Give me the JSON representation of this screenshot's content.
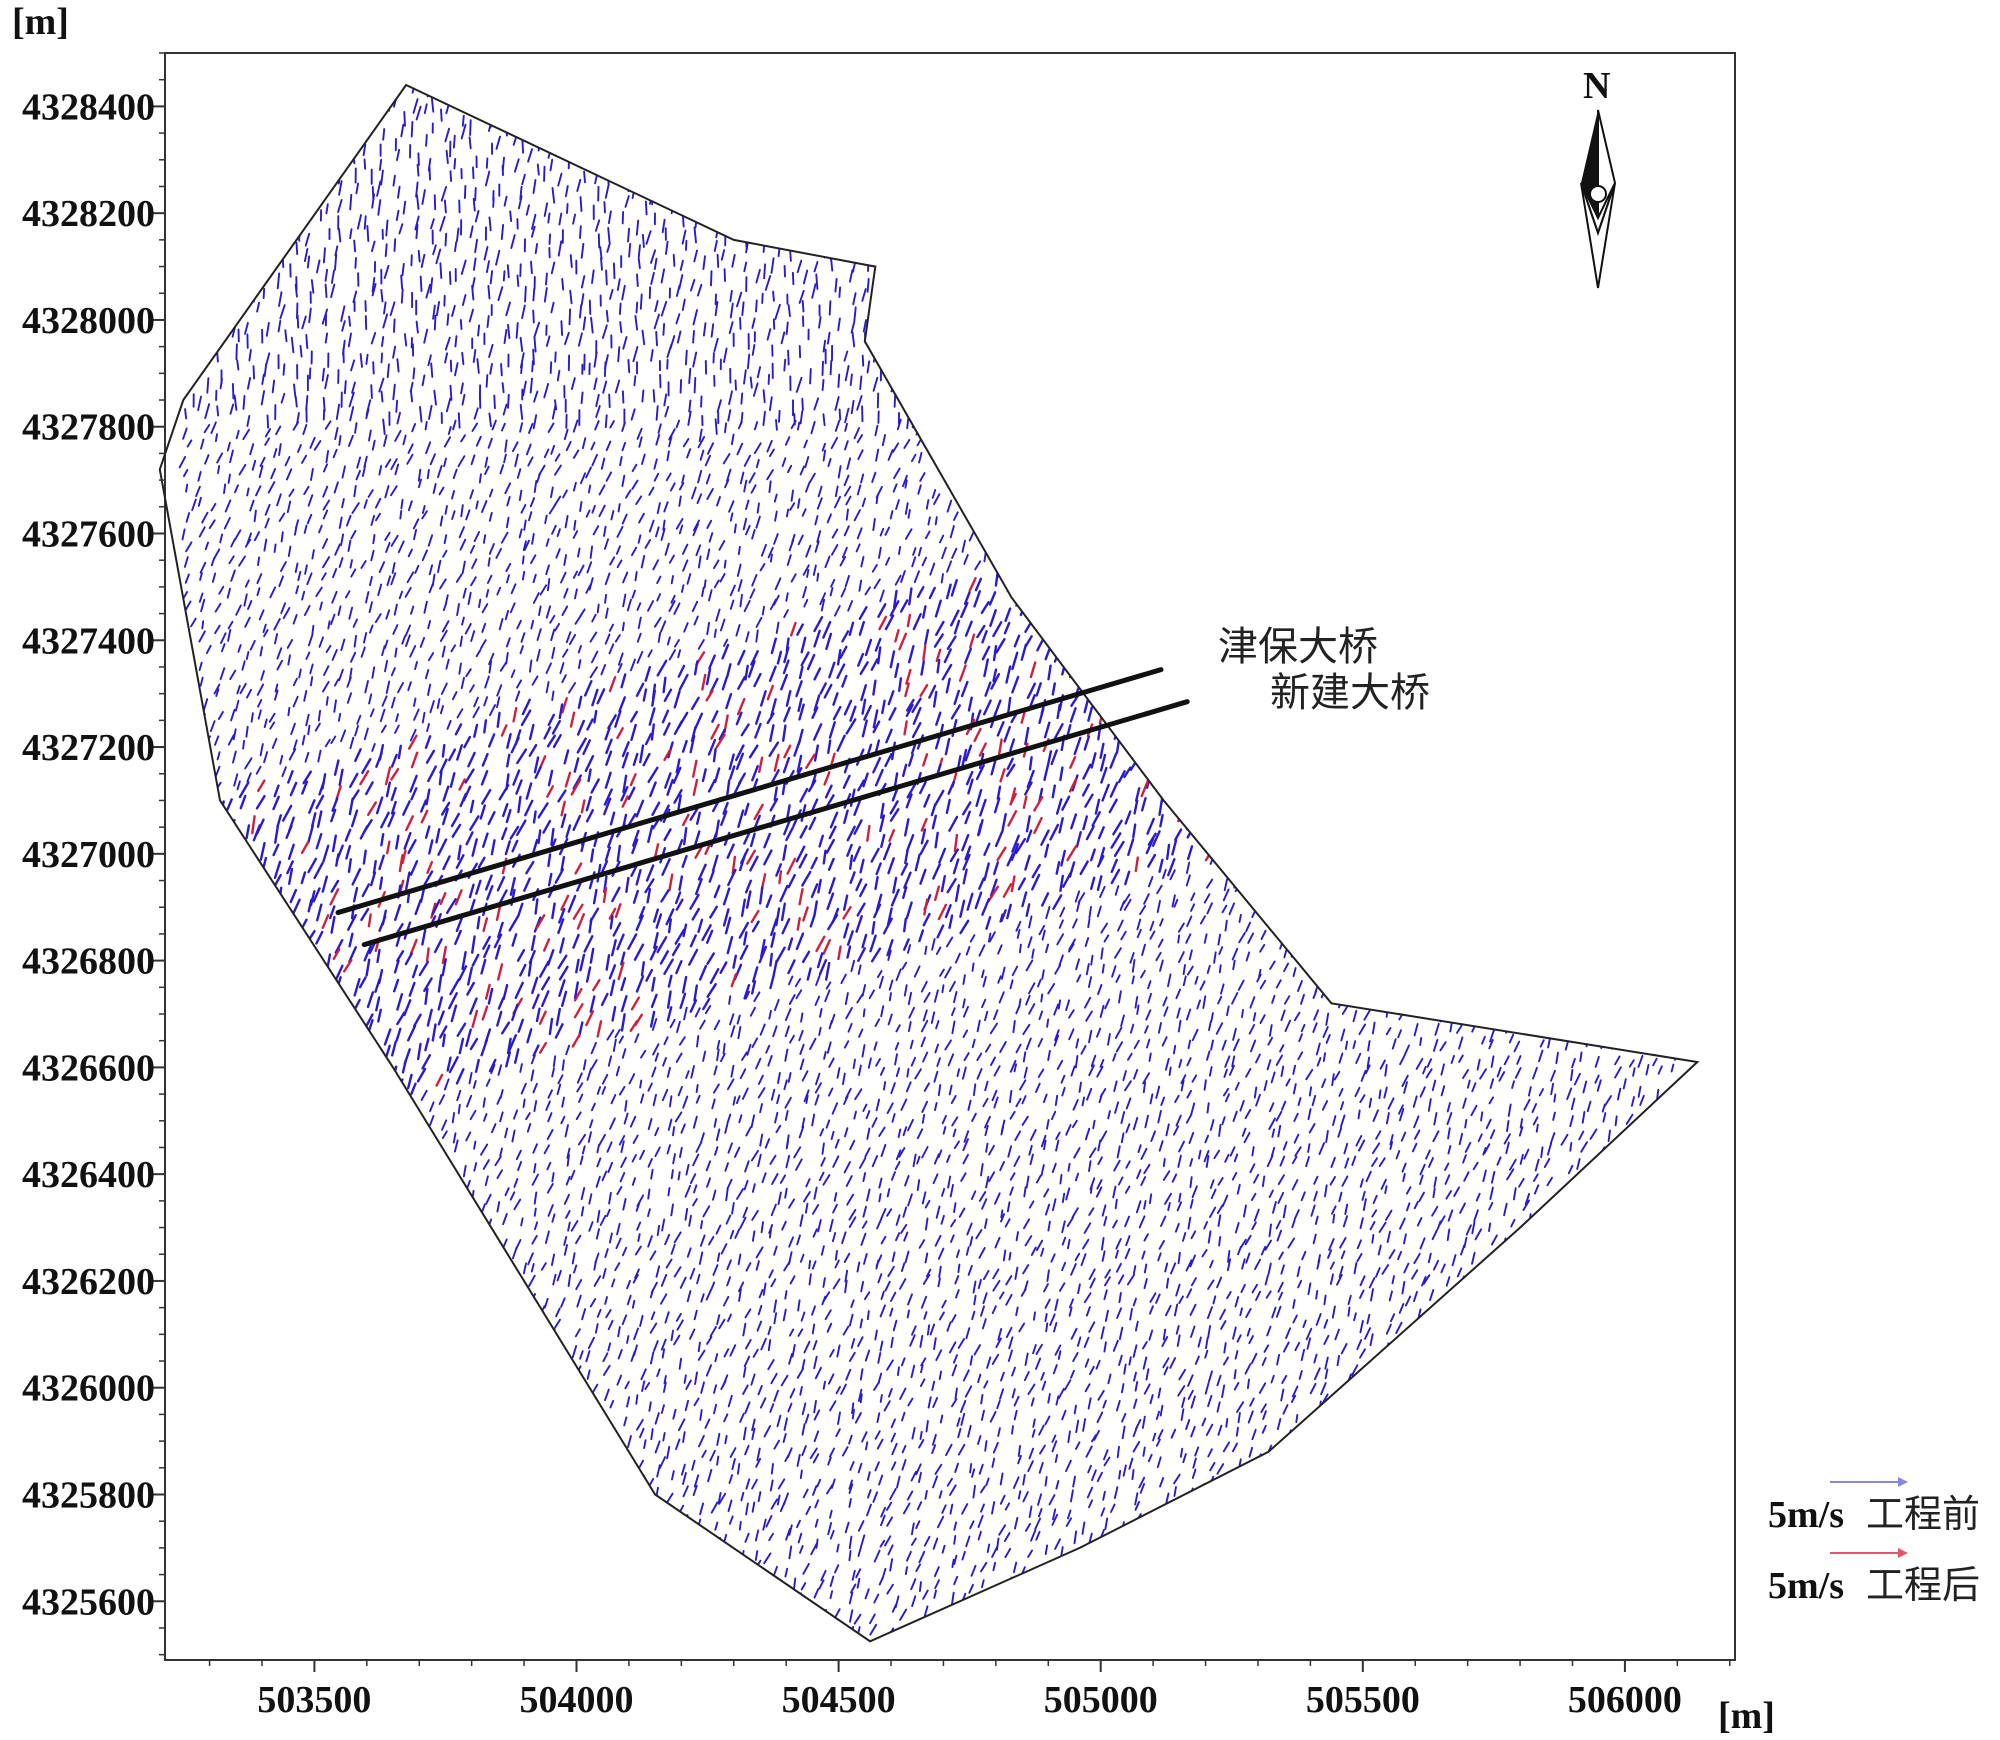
{
  "chart_data": {
    "type": "vector-field",
    "title": "",
    "x_unit": "[m]",
    "y_unit": "[m]",
    "xlim": [
      503215,
      506210
    ],
    "ylim": [
      4325490,
      4328500
    ],
    "x_ticks": [
      503500,
      504000,
      504500,
      505000,
      505500,
      506000
    ],
    "y_ticks": [
      4325600,
      4325800,
      4326000,
      4326200,
      4326400,
      4326600,
      4326800,
      4327000,
      4327200,
      4327400,
      4327600,
      4327800,
      4328000,
      4328200,
      4328400
    ],
    "domain_boundary": [
      [
        503675,
        4328440
      ],
      [
        504300,
        4328150
      ],
      [
        504570,
        4328100
      ],
      [
        504550,
        4327960
      ],
      [
        504830,
        4327480
      ],
      [
        505120,
        4327100
      ],
      [
        505440,
        4326720
      ],
      [
        506138,
        4326610
      ],
      [
        505800,
        4326300
      ],
      [
        505320,
        4325880
      ],
      [
        504960,
        4325700
      ],
      [
        504560,
        4325525
      ],
      [
        504150,
        4325800
      ],
      [
        503650,
        4326600
      ],
      [
        503320,
        4327100
      ],
      [
        503205,
        4327720
      ],
      [
        503250,
        4327850
      ],
      [
        503675,
        4328440
      ]
    ],
    "bridges": [
      {
        "name": "津保大桥",
        "line": [
          [
            503545,
            4326890
          ],
          [
            505115,
            4327345
          ]
        ]
      },
      {
        "name": "新建大桥",
        "line": [
          [
            503595,
            4326830
          ],
          [
            505165,
            4327285
          ]
        ]
      }
    ],
    "series": [
      {
        "name": "工程前",
        "color": "#2a1bd0"
      },
      {
        "name": "工程后",
        "color": "#d0203a"
      }
    ],
    "flow_direction_deg": 250,
    "legend": [
      {
        "speed": "5m/s",
        "label": "工程前",
        "color": "#8a86e0"
      },
      {
        "speed": "5m/s",
        "label": "工程后",
        "color": "#e0566a"
      }
    ],
    "north_label": "N"
  }
}
